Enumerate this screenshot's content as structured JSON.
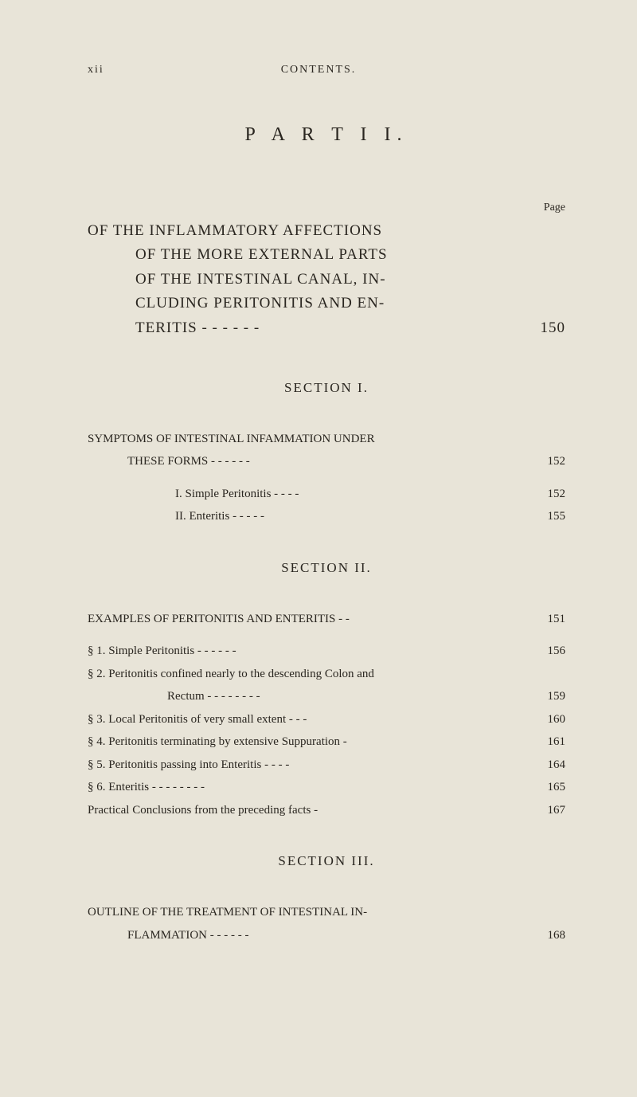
{
  "colors": {
    "background": "#e8e4d8",
    "text": "#2a2620"
  },
  "typography": {
    "body_font": "Georgia, Times New Roman, serif",
    "header_fontsize": 14,
    "part_title_fontsize": 24,
    "of_block_fontsize": 19,
    "section_title_fontsize": 17,
    "entry_fontsize": 15
  },
  "header": {
    "left": "xii",
    "center": "CONTENTS."
  },
  "part_title": "P A R T  I I.",
  "page_label": "Page",
  "of_block": {
    "line1": "OF THE INFLAMMATORY AFFECTIONS",
    "line2": "OF THE MORE EXTERNAL PARTS",
    "line3": "OF THE INTESTINAL CANAL, IN-",
    "line4": "CLUDING PERITONITIS AND EN-",
    "line5_label": "TERITIS     -     -     -     -     -     -",
    "line5_page": "150"
  },
  "section1": {
    "title": "SECTION I.",
    "symptoms": {
      "label": "SYMPTOMS OF INTESTINAL INFAMMATION UNDER",
      "these_forms_label": "THESE FORMS     -     -     -     -     -     -",
      "these_forms_page": "152"
    },
    "sub_items": [
      {
        "label": "I.  Simple Peritonitis     -     -     -     -",
        "page": "152"
      },
      {
        "label": "II.  Enteritis          -     -     -     -     -",
        "page": "155"
      }
    ]
  },
  "section2": {
    "title": "SECTION II.",
    "examples": {
      "label": "EXAMPLES OF PERITONITIS AND ENTERITIS  -     -",
      "page": "151"
    },
    "items": [
      {
        "label": "§ 1. Simple Peritonitis     -     -     -     -     -     -",
        "page": "156"
      },
      {
        "label": "§ 2. Peritonitis confined nearly to the descending Colon and",
        "page": ""
      },
      {
        "label": "Rectum     -     -     -     -     -     -     -     -",
        "page": "159",
        "indent": "rectum"
      },
      {
        "label": "§ 3. Local Peritonitis of very small extent     -     -     -",
        "page": "160"
      },
      {
        "label": "§ 4. Peritonitis terminating by extensive Suppuration     -",
        "page": "161"
      },
      {
        "label": "§ 5. Peritonitis passing into Enteritis     -     -     -     -",
        "page": "164"
      },
      {
        "label": "§ 6. Enteritis     -     -     -     -     -     -     -     -",
        "page": "165"
      },
      {
        "label": "     Practical Conclusions from the preceding facts     -",
        "page": "167"
      }
    ]
  },
  "section3": {
    "title": "SECTION III.",
    "outline": {
      "label1": "OUTLINE OF THE TREATMENT OF INTESTINAL IN-",
      "label2": "FLAMMATION     -     -     -     -     -     -",
      "page": "168"
    }
  }
}
